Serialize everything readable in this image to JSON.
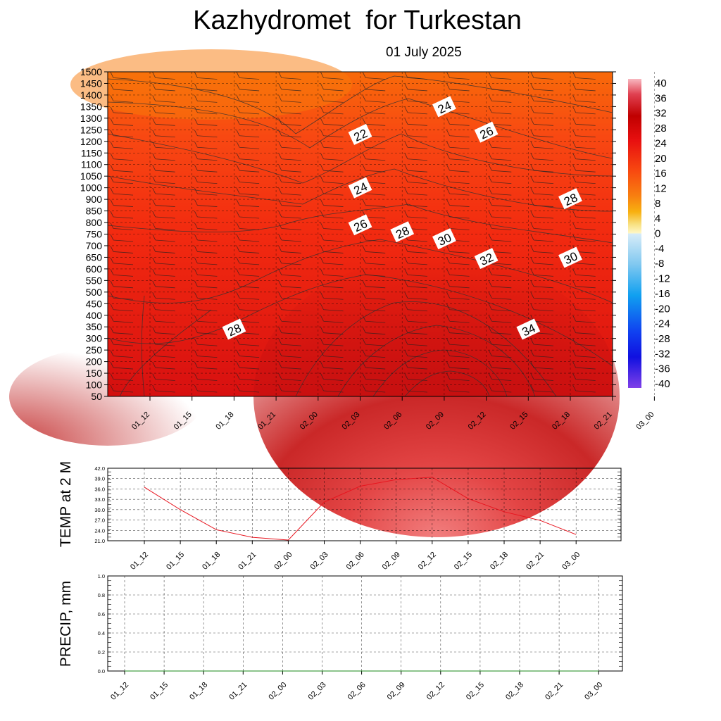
{
  "title": "Kazhydromet  for Turkestan",
  "subtitle": "01 July 2025",
  "time_labels": [
    "01_12",
    "01_15",
    "01_18",
    "01_21",
    "02_00",
    "02_03",
    "02_06",
    "02_09",
    "02_12",
    "02_15",
    "02_18",
    "02_21",
    "03_00"
  ],
  "colors": {
    "contour_line": "#333333",
    "temp_line": "#e8141e",
    "precip_line": "#1a8a1a",
    "grid": "#000000"
  },
  "chart_data": [
    {
      "type": "heatmap",
      "title": "Kazhydromet  for Turkestan",
      "subtitle": "01 July 2025",
      "x": [
        "01_12",
        "01_15",
        "01_18",
        "01_21",
        "02_00",
        "02_03",
        "02_06",
        "02_09",
        "02_12",
        "02_15",
        "02_18",
        "02_21",
        "03_00"
      ],
      "y_levels": [
        50,
        100,
        150,
        200,
        250,
        300,
        350,
        400,
        450,
        500,
        550,
        600,
        650,
        700,
        750,
        800,
        850,
        900,
        1000,
        1050,
        1100,
        1150,
        1200,
        1250,
        1300,
        1350,
        1400,
        1450,
        1500
      ],
      "y_tick_labels": [
        "50",
        "100",
        "150",
        "200",
        "250",
        "300",
        "350",
        "400",
        "450",
        "500",
        "550",
        "600",
        "650",
        "700",
        "750",
        "800",
        "850",
        "900",
        "1000",
        "1050",
        "1100",
        "1150",
        "1200",
        "1250",
        "1300",
        "1350",
        "1400",
        "1450",
        "1500"
      ],
      "colorbar": {
        "labels": [
          "40",
          "36",
          "32",
          "28",
          "24",
          "20",
          "16",
          "12",
          "8",
          "4",
          "0",
          "-4",
          "-8",
          "-12",
          "-16",
          "-20",
          "-24",
          "-28",
          "-32",
          "-36",
          "-40"
        ],
        "min": -40,
        "max": 40
      },
      "contour_labels": [
        {
          "text": "22",
          "t": "02_03",
          "level": 1230
        },
        {
          "text": "24",
          "t": "02_09",
          "level": 1350
        },
        {
          "text": "26",
          "t": "02_12",
          "level": 1240
        },
        {
          "text": "24",
          "t": "02_03",
          "level": 1000
        },
        {
          "text": "28",
          "t": "02_18",
          "level": 905
        },
        {
          "text": "26",
          "t": "02_03",
          "level": 790
        },
        {
          "text": "28",
          "t": "02_06",
          "level": 760
        },
        {
          "text": "30",
          "t": "02_09",
          "level": 730
        },
        {
          "text": "32",
          "t": "02_12",
          "level": 645
        },
        {
          "text": "30",
          "t": "02_18",
          "level": 650
        },
        {
          "text": "28",
          "t": "01_18",
          "level": 340
        },
        {
          "text": "34",
          "t": "02_15",
          "level": 340
        }
      ]
    },
    {
      "type": "line",
      "ylabel": "TEMP at 2 M",
      "categories": [
        "01_12",
        "01_15",
        "01_18",
        "01_21",
        "02_00",
        "02_03",
        "02_06",
        "02_09",
        "02_12",
        "02_15",
        "02_18",
        "02_21",
        "03_00"
      ],
      "values": [
        36.5,
        30.0,
        24.2,
        22.0,
        21.2,
        32.2,
        36.8,
        38.7,
        39.4,
        33.2,
        29.4,
        26.9,
        22.8
      ],
      "ylim": [
        21.0,
        42.0
      ],
      "y_tick_labels": [
        "21.0",
        "24.0",
        "27.0",
        "30.0",
        "33.0",
        "36.0",
        "39.0",
        "42.0"
      ]
    },
    {
      "type": "line",
      "ylabel": "PRECIP, mm",
      "categories": [
        "01_12",
        "01_15",
        "01_18",
        "01_21",
        "02_00",
        "02_03",
        "02_06",
        "02_09",
        "02_12",
        "02_15",
        "02_18",
        "02_21",
        "03_00"
      ],
      "values": [
        0,
        0,
        0,
        0,
        0,
        0,
        0,
        0,
        0,
        0,
        0,
        0,
        0
      ],
      "ylim": [
        0.0,
        1.0
      ],
      "y_tick_labels": [
        "0.0",
        "0.2",
        "0.4",
        "0.6",
        "0.8",
        "1.0"
      ]
    }
  ]
}
